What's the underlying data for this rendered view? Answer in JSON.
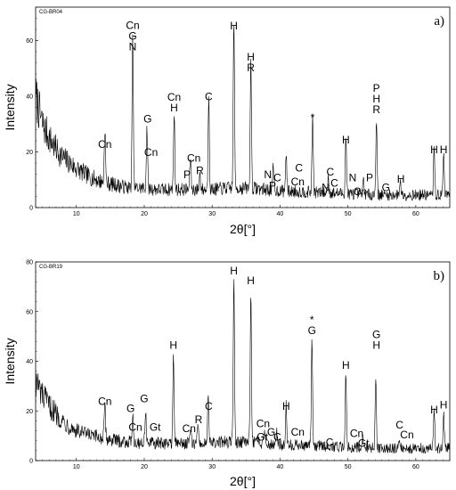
{
  "chart_data": [
    {
      "type": "line",
      "panel_label": "a)",
      "sample_id": "CG-BR04",
      "xlabel": "2θ[°]",
      "ylabel": "Intensity",
      "xlim": [
        4,
        65
      ],
      "ylim": [
        0,
        72
      ],
      "xticks": [
        10,
        20,
        30,
        40,
        50,
        60
      ],
      "yticks": [
        0,
        20,
        40,
        60
      ],
      "grid": false,
      "baseline": [
        [
          4,
          40
        ],
        [
          5,
          30
        ],
        [
          6,
          25
        ],
        [
          7,
          21
        ],
        [
          8,
          18
        ],
        [
          9,
          16
        ],
        [
          10,
          14
        ],
        [
          12,
          11
        ],
        [
          14,
          9
        ],
        [
          16,
          8
        ],
        [
          18,
          7
        ],
        [
          20,
          7
        ],
        [
          22,
          6.5
        ],
        [
          24,
          6.5
        ],
        [
          26,
          6.5
        ],
        [
          28,
          6.5
        ],
        [
          30,
          6.5
        ],
        [
          32,
          7
        ],
        [
          34,
          7
        ],
        [
          36,
          7
        ],
        [
          38,
          6.5
        ],
        [
          40,
          6
        ],
        [
          45,
          5.5
        ],
        [
          50,
          5
        ],
        [
          55,
          4.5
        ],
        [
          60,
          4.5
        ],
        [
          65,
          4.5
        ]
      ],
      "peaks": [
        [
          14.2,
          20
        ],
        [
          18.3,
          55
        ],
        [
          20.4,
          22
        ],
        [
          24.4,
          28
        ],
        [
          26.8,
          12
        ],
        [
          28.2,
          6
        ],
        [
          29.5,
          35
        ],
        [
          33.2,
          62
        ],
        [
          35.7,
          47
        ],
        [
          39.0,
          8
        ],
        [
          40.9,
          14
        ],
        [
          44.8,
          28
        ],
        [
          47.1,
          6
        ],
        [
          49.7,
          21
        ],
        [
          52.3,
          5
        ],
        [
          54.2,
          28
        ],
        [
          57.7,
          6
        ],
        [
          62.7,
          17
        ],
        [
          64.1,
          16
        ]
      ],
      "annotations": [
        {
          "x": 14.2,
          "y": 21.5,
          "lines": [
            "Cn"
          ]
        },
        {
          "x": 18.3,
          "y": 56.5,
          "lines": [
            "Cn",
            "G",
            "N"
          ]
        },
        {
          "x": 20.5,
          "y": 30.5,
          "lines": [
            "G"
          ]
        },
        {
          "x": 21.0,
          "y": 18.5,
          "lines": [
            "Cn"
          ]
        },
        {
          "x": 24.4,
          "y": 34.5,
          "lines": [
            "Cn",
            "H"
          ]
        },
        {
          "x": 29.5,
          "y": 38.5,
          "lines": [
            "C"
          ]
        },
        {
          "x": 26.3,
          "y": 10.5,
          "lines": [
            "P"
          ]
        },
        {
          "x": 27.3,
          "y": 16.5,
          "lines": [
            "Cn"
          ]
        },
        {
          "x": 28.2,
          "y": 12.0,
          "lines": [
            "R"
          ]
        },
        {
          "x": 33.2,
          "y": 64.0,
          "lines": [
            "H"
          ]
        },
        {
          "x": 35.7,
          "y": 49.0,
          "lines": [
            "H",
            "R"
          ]
        },
        {
          "x": 38.2,
          "y": 10.5,
          "lines": [
            "N"
          ]
        },
        {
          "x": 38.9,
          "y": 6.5,
          "lines": [
            "P"
          ]
        },
        {
          "x": 39.6,
          "y": 9.5,
          "lines": [
            "C"
          ]
        },
        {
          "x": 42.8,
          "y": 13.0,
          "lines": [
            "C"
          ]
        },
        {
          "x": 42.6,
          "y": 8.0,
          "lines": [
            "Cn"
          ]
        },
        {
          "x": 44.8,
          "y": 31.0,
          "lines": [
            "*"
          ]
        },
        {
          "x": 46.7,
          "y": 6.0,
          "lines": [
            "N"
          ]
        },
        {
          "x": 47.4,
          "y": 11.5,
          "lines": [
            "C"
          ]
        },
        {
          "x": 48.0,
          "y": 7.5,
          "lines": [
            "C"
          ]
        },
        {
          "x": 49.7,
          "y": 23.0,
          "lines": [
            "H"
          ]
        },
        {
          "x": 50.7,
          "y": 9.5,
          "lines": [
            "N"
          ]
        },
        {
          "x": 51.8,
          "y": 4.5,
          "lines": [
            "Cn"
          ]
        },
        {
          "x": 53.2,
          "y": 9.5,
          "lines": [
            "P"
          ]
        },
        {
          "x": 54.2,
          "y": 34.0,
          "lines": [
            "P",
            "H",
            "R"
          ]
        },
        {
          "x": 55.6,
          "y": 6.0,
          "lines": [
            "G"
          ]
        },
        {
          "x": 57.8,
          "y": 9.0,
          "lines": [
            "H"
          ]
        },
        {
          "x": 62.7,
          "y": 19.5,
          "lines": [
            "H"
          ]
        },
        {
          "x": 64.1,
          "y": 19.5,
          "lines": [
            "H"
          ]
        }
      ]
    },
    {
      "type": "line",
      "panel_label": "b)",
      "sample_id": "CG-BR19",
      "xlabel": "2θ[°]",
      "ylabel": "Intensity",
      "xlim": [
        4,
        65
      ],
      "ylim": [
        0,
        80
      ],
      "xticks": [
        10,
        20,
        30,
        40,
        50,
        60
      ],
      "yticks": [
        0,
        20,
        40,
        60,
        80
      ],
      "grid": false,
      "baseline": [
        [
          4,
          32
        ],
        [
          5,
          26
        ],
        [
          6,
          22
        ],
        [
          7,
          19
        ],
        [
          8,
          16
        ],
        [
          9,
          14
        ],
        [
          10,
          12
        ],
        [
          12,
          10
        ],
        [
          14,
          9
        ],
        [
          16,
          8
        ],
        [
          18,
          7.5
        ],
        [
          20,
          7
        ],
        [
          22,
          7
        ],
        [
          24,
          7
        ],
        [
          26,
          7
        ],
        [
          28,
          7
        ],
        [
          30,
          7
        ],
        [
          32,
          7.5
        ],
        [
          34,
          7.5
        ],
        [
          36,
          7.5
        ],
        [
          38,
          7
        ],
        [
          40,
          6.5
        ],
        [
          45,
          6
        ],
        [
          50,
          5.5
        ],
        [
          55,
          5
        ],
        [
          60,
          5
        ],
        [
          65,
          5
        ]
      ],
      "peaks": [
        [
          14.2,
          13
        ],
        [
          18.3,
          12
        ],
        [
          20.2,
          14
        ],
        [
          24.3,
          36
        ],
        [
          26.8,
          6
        ],
        [
          27.9,
          8
        ],
        [
          29.4,
          20
        ],
        [
          33.2,
          66
        ],
        [
          35.7,
          62
        ],
        [
          37.7,
          6
        ],
        [
          39.5,
          5
        ],
        [
          40.9,
          17
        ],
        [
          44.7,
          42
        ],
        [
          49.7,
          30
        ],
        [
          52.2,
          4
        ],
        [
          54.1,
          29
        ],
        [
          57.6,
          4
        ],
        [
          62.7,
          15
        ],
        [
          64.1,
          14
        ]
      ],
      "annotations": [
        {
          "x": 14.2,
          "y": 22.5,
          "lines": [
            "Cn"
          ]
        },
        {
          "x": 18.0,
          "y": 19.5,
          "lines": [
            "G"
          ]
        },
        {
          "x": 20.0,
          "y": 23.5,
          "lines": [
            "G"
          ]
        },
        {
          "x": 18.7,
          "y": 12.0,
          "lines": [
            "Cn"
          ]
        },
        {
          "x": 21.6,
          "y": 12.0,
          "lines": [
            "Gt"
          ]
        },
        {
          "x": 24.3,
          "y": 45.0,
          "lines": [
            "H"
          ]
        },
        {
          "x": 26.6,
          "y": 11.5,
          "lines": [
            "Cn"
          ]
        },
        {
          "x": 28.0,
          "y": 15.0,
          "lines": [
            "R"
          ]
        },
        {
          "x": 29.5,
          "y": 20.5,
          "lines": [
            "C"
          ]
        },
        {
          "x": 33.2,
          "y": 75.0,
          "lines": [
            "H"
          ]
        },
        {
          "x": 35.7,
          "y": 71.0,
          "lines": [
            "H"
          ]
        },
        {
          "x": 37.5,
          "y": 13.5,
          "lines": [
            "Cn"
          ]
        },
        {
          "x": 37.4,
          "y": 8.0,
          "lines": [
            "Gt"
          ]
        },
        {
          "x": 38.7,
          "y": 10.0,
          "lines": [
            "G"
          ]
        },
        {
          "x": 39.6,
          "y": 8.0,
          "lines": [
            "C"
          ]
        },
        {
          "x": 40.9,
          "y": 20.5,
          "lines": [
            "H"
          ]
        },
        {
          "x": 42.6,
          "y": 10.0,
          "lines": [
            "Cn"
          ]
        },
        {
          "x": 44.7,
          "y": 51.0,
          "lines": [
            "*",
            "G"
          ]
        },
        {
          "x": 47.3,
          "y": 6.0,
          "lines": [
            "C"
          ]
        },
        {
          "x": 49.7,
          "y": 37.0,
          "lines": [
            "H"
          ]
        },
        {
          "x": 51.3,
          "y": 9.5,
          "lines": [
            "Cn"
          ]
        },
        {
          "x": 52.3,
          "y": 5.5,
          "lines": [
            "Gt"
          ]
        },
        {
          "x": 54.2,
          "y": 45.0,
          "lines": [
            "G",
            "H"
          ]
        },
        {
          "x": 57.6,
          "y": 13.0,
          "lines": [
            "C"
          ]
        },
        {
          "x": 58.7,
          "y": 9.0,
          "lines": [
            "Cn"
          ]
        },
        {
          "x": 62.7,
          "y": 19.0,
          "lines": [
            "H"
          ]
        },
        {
          "x": 64.1,
          "y": 21.0,
          "lines": [
            "H"
          ]
        }
      ]
    }
  ]
}
